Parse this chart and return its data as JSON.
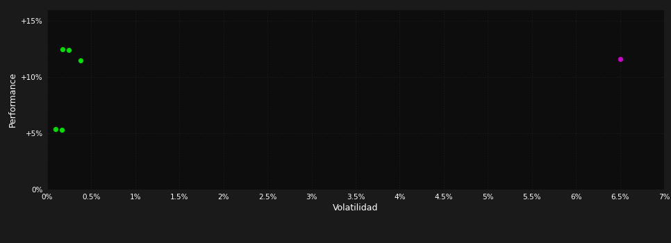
{
  "fig_bg_color": "#1a1a1a",
  "plot_bg_color": "#0d0d0d",
  "grid_color": "#1e3a1e",
  "text_color": "#ffffff",
  "xlabel": "Volatilidad",
  "ylabel": "Performance",
  "xlim": [
    0,
    0.07
  ],
  "ylim": [
    0,
    0.16
  ],
  "xtick_vals": [
    0,
    0.005,
    0.01,
    0.015,
    0.02,
    0.025,
    0.03,
    0.035,
    0.04,
    0.045,
    0.05,
    0.055,
    0.06,
    0.065,
    0.07
  ],
  "xtick_labels": [
    "0%",
    "0.5%",
    "1%",
    "1.5%",
    "2%",
    "2.5%",
    "3%",
    "3.5%",
    "4%",
    "4.5%",
    "5%",
    "5.5%",
    "6%",
    "6.5%",
    "7%"
  ],
  "ytick_vals": [
    0,
    0.05,
    0.1,
    0.15
  ],
  "ytick_labels": [
    "0%",
    "+5%",
    "+10%",
    "+15%"
  ],
  "green_points": [
    [
      0.0018,
      0.125
    ],
    [
      0.0025,
      0.124
    ],
    [
      0.0038,
      0.115
    ],
    [
      0.001,
      0.054
    ],
    [
      0.0017,
      0.053
    ]
  ],
  "magenta_points": [
    [
      0.065,
      0.116
    ]
  ],
  "point_size": 18,
  "grid_linewidth": 0.5,
  "font_size_ticks": 7.5,
  "font_size_label": 9
}
